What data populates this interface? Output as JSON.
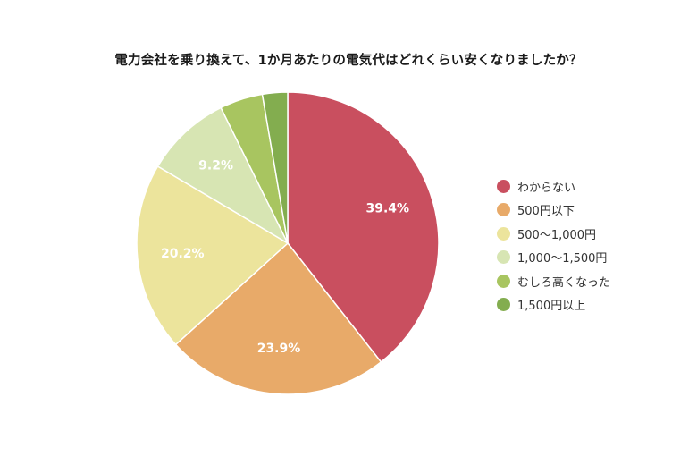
{
  "chart_data": {
    "type": "pie",
    "title": "電力会社を乗り換えて、1か月あたりの電気代はどれくらい安くなりましたか？",
    "categories": [
      "わからない",
      "500円以下",
      "500～1,000円",
      "1,000～1,500円",
      "むしろ高くなった",
      "1,500円以上"
    ],
    "values": [
      39.4,
      23.9,
      20.2,
      9.2,
      4.6,
      2.7
    ],
    "data_labels": [
      "39.4%",
      "23.9%",
      "20.2%",
      "9.2%",
      "",
      ""
    ],
    "colors": [
      "#c94f5f",
      "#e8aa69",
      "#ece49c",
      "#d7e5b3",
      "#a8c560",
      "#83ad4f"
    ],
    "legend_position": "right",
    "start_angle": "12 o'clock, clockwise"
  }
}
